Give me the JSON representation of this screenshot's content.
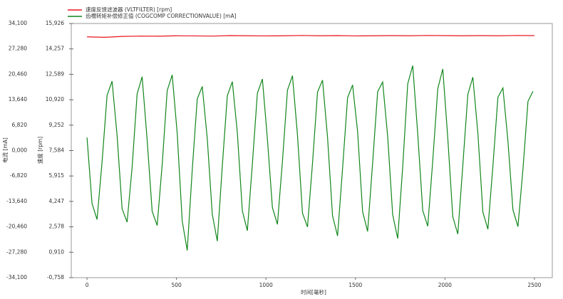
{
  "chart_data": {
    "type": "line",
    "xlabel": "时间[毫秒]",
    "ylabel": "电流 [mA]",
    "y2label": "速度 [rpm]",
    "xlim": [
      -88,
      2600
    ],
    "xticks": [
      0,
      500,
      1000,
      1500,
      2000,
      2500
    ],
    "ylim": [
      -34.1,
      34.1
    ],
    "yticks": [
      {
        "value": 34.1,
        "label": "34,100"
      },
      {
        "value": 27.28,
        "label": "27,280"
      },
      {
        "value": 20.46,
        "label": "20,460"
      },
      {
        "value": 13.64,
        "label": "13,640"
      },
      {
        "value": 6.82,
        "label": "6,820"
      },
      {
        "value": 0,
        "label": "0,000"
      },
      {
        "value": -6.82,
        "label": "-6,820"
      },
      {
        "value": -13.64,
        "label": "-13,640"
      },
      {
        "value": -20.46,
        "label": "-20,460"
      },
      {
        "value": -27.28,
        "label": "-27,280"
      },
      {
        "value": -34.1,
        "label": "-34,100"
      }
    ],
    "y2lim": [
      -0.758,
      15.926
    ],
    "y2ticks": [
      {
        "value": 15.926,
        "label": "15,926"
      },
      {
        "value": 14.257,
        "label": "14,257"
      },
      {
        "value": 12.589,
        "label": "12,589"
      },
      {
        "value": 10.92,
        "label": "10,920"
      },
      {
        "value": 9.252,
        "label": "9,252"
      },
      {
        "value": 7.584,
        "label": "7,584"
      },
      {
        "value": 5.915,
        "label": "5,915"
      },
      {
        "value": 4.247,
        "label": "4,247"
      },
      {
        "value": 2.578,
        "label": "2,578"
      },
      {
        "value": 0.91,
        "label": "0,910"
      },
      {
        "value": -0.758,
        "label": "-0,758"
      }
    ],
    "series": [
      {
        "name": "速度反馈滤波器 (VLTFILTER) [rpm]",
        "color": "#e8141e",
        "axis": "y2",
        "x": [
          0,
          100,
          200,
          300,
          400,
          500,
          600,
          700,
          800,
          900,
          1000,
          1100,
          1200,
          1300,
          1400,
          1500,
          1600,
          1700,
          1800,
          1900,
          2000,
          2100,
          2200,
          2300,
          2400,
          2500
        ],
        "values": [
          15.05,
          15.02,
          15.08,
          15.1,
          15.09,
          15.12,
          15.11,
          15.1,
          15.13,
          15.12,
          15.11,
          15.12,
          15.14,
          15.12,
          15.13,
          15.11,
          15.12,
          15.13,
          15.12,
          15.14,
          15.13,
          15.12,
          15.13,
          15.12,
          15.14,
          15.13
        ]
      },
      {
        "name": "齿槽转矩补偿修正值 (COGCOMP CORRECTIONVALUE) [mA]",
        "color": "#11861b",
        "x": [
          0,
          28,
          56,
          84,
          112,
          140,
          168,
          196,
          224,
          252,
          280,
          308,
          336,
          364,
          392,
          420,
          448,
          476,
          504,
          532,
          560,
          588,
          616,
          644,
          672,
          700,
          728,
          756,
          784,
          812,
          840,
          868,
          896,
          924,
          952,
          980,
          1008,
          1036,
          1064,
          1092,
          1120,
          1148,
          1176,
          1204,
          1232,
          1260,
          1288,
          1316,
          1344,
          1372,
          1400,
          1428,
          1456,
          1484,
          1512,
          1540,
          1568,
          1596,
          1624,
          1652,
          1680,
          1708,
          1736,
          1764,
          1792,
          1820,
          1848,
          1876,
          1904,
          1932,
          1960,
          1988,
          2016,
          2044,
          2072,
          2100,
          2128,
          2156,
          2184,
          2212,
          2240,
          2268,
          2296,
          2324,
          2352,
          2380,
          2408,
          2436,
          2464,
          2492
        ],
        "values": [
          3.5,
          -14.2,
          -18.5,
          -3.1,
          14.8,
          18.6,
          4.1,
          -15.6,
          -19.2,
          -4.5,
          15.2,
          19.8,
          2.9,
          -16.3,
          -20.1,
          -3.8,
          16.1,
          20.3,
          4.6,
          -18.9,
          -26.8,
          -5.2,
          13.9,
          17.2,
          3.2,
          -17.1,
          -24.3,
          -4.1,
          14.7,
          18.5,
          4.8,
          -16.2,
          -21.5,
          -3.6,
          15.4,
          19.2,
          3.1,
          -15.3,
          -19.8,
          -2.9,
          16.2,
          20.1,
          4.2,
          -16.8,
          -20.5,
          -3.4,
          15.7,
          18.9,
          3.6,
          -17.5,
          -22.9,
          -4.8,
          14.2,
          17.6,
          5.1,
          -16.4,
          -21.7,
          -3.3,
          15.8,
          18.4,
          3.8,
          -17.2,
          -23.6,
          -4.4,
          17.9,
          22.8,
          4.5,
          -16.1,
          -20.3,
          -2.7,
          16.6,
          21.9,
          3.3,
          -17.8,
          -22.4,
          -3.9,
          15.1,
          19.7,
          4.7,
          -16.5,
          -21.1,
          -4.2,
          14.3,
          16.8,
          2.6,
          -15.9,
          -20.4,
          -5.0,
          13.2,
          15.9
        ]
      }
    ]
  }
}
